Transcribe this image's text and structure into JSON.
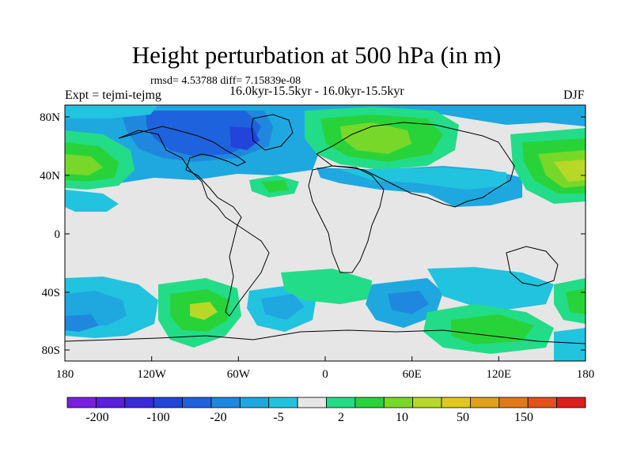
{
  "title": "Height perturbation at 500 hPa (in m)",
  "stats": "rmsd= 4.53788 diff= 7.15839e-08",
  "experiment": "Expt = tejmi-tejmg",
  "periods": "16.0kyr-15.5kyr - 16.0kyr-15.5kyr",
  "season": "DJF",
  "lat_ticks": [
    "80N",
    "40N",
    "0",
    "40S",
    "80S"
  ],
  "lon_ticks": [
    "180",
    "120W",
    "60W",
    "0",
    "60E",
    "120E",
    "180"
  ],
  "colorbar": {
    "labels": [
      "-200",
      "-100",
      "-20",
      "-5",
      "2",
      "10",
      "50",
      "150"
    ],
    "colors": [
      "#7a1fe0",
      "#5a1fdc",
      "#3a2bd8",
      "#2244d8",
      "#1e63dd",
      "#1f88de",
      "#1ea8df",
      "#22c3de",
      "#e6e6e6",
      "#23dc88",
      "#28d33a",
      "#78d82a",
      "#b8d828",
      "#e0c81e",
      "#e0a01a",
      "#e07a18",
      "#e0521a",
      "#dc1f1a"
    ]
  }
}
